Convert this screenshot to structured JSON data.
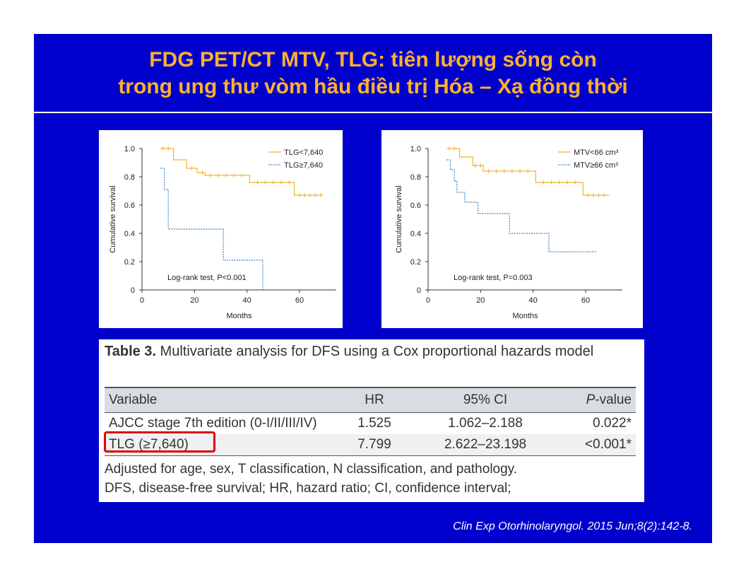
{
  "slide": {
    "title_line1": "FDG PET/CT MTV, TLG: tiên lượng sống còn",
    "title_line2": "trong ung thư vòm hầu điều trị Hóa – Xạ đồng thời",
    "background_color": "#0000cc",
    "title_color": "#ffb030",
    "citation": "Clin Exp Otorhinolaryngol. 2015 Jun;8(2):142-8."
  },
  "chart_data": [
    {
      "type": "line",
      "subtype": "kaplan-meier",
      "xlabel": "Months",
      "ylabel": "Cumulative survival",
      "xticks": [
        "0",
        "20",
        "40",
        "60"
      ],
      "yticks": [
        "0",
        "0.2",
        "0.4",
        "0.6",
        "0.8",
        "1.0"
      ],
      "xlim": [
        0,
        74
      ],
      "ylim": [
        0,
        1.0
      ],
      "annotation": "Log-rank test, P<0.001",
      "legend_position": "top-right",
      "series": [
        {
          "name": "TLG<7,640",
          "color": "#f0b429",
          "style": "solid",
          "steps": [
            [
              7,
              1.0
            ],
            [
              12,
              1.0
            ],
            [
              12,
              0.92
            ],
            [
              17,
              0.92
            ],
            [
              17,
              0.86
            ],
            [
              21,
              0.86
            ],
            [
              21,
              0.83
            ],
            [
              24,
              0.83
            ],
            [
              24,
              0.81
            ],
            [
              41,
              0.81
            ],
            [
              41,
              0.76
            ],
            [
              58,
              0.76
            ],
            [
              58,
              0.67
            ],
            [
              69,
              0.67
            ]
          ],
          "censor_x": [
            8,
            10,
            19,
            23,
            26,
            29,
            32,
            35,
            38,
            44,
            47,
            50,
            53,
            56,
            60,
            62,
            64,
            66,
            68
          ]
        },
        {
          "name": "TLG≥7,640",
          "color": "#3b82c4",
          "style": "dashed",
          "steps": [
            [
              7,
              0.86
            ],
            [
              8.5,
              0.86
            ],
            [
              8.5,
              0.71
            ],
            [
              10,
              0.71
            ],
            [
              10,
              0.43
            ],
            [
              31,
              0.43
            ],
            [
              31,
              0.21
            ],
            [
              46,
              0.21
            ],
            [
              46,
              0.0
            ]
          ],
          "censor_x": []
        }
      ]
    },
    {
      "type": "line",
      "subtype": "kaplan-meier",
      "xlabel": "Months",
      "ylabel": "Cumulative survival",
      "xticks": [
        "0",
        "20",
        "40",
        "60"
      ],
      "yticks": [
        "0",
        "0.2",
        "0.4",
        "0.6",
        "0.8",
        "1.0"
      ],
      "xlim": [
        0,
        74
      ],
      "ylim": [
        0,
        1.0
      ],
      "annotation": "Log-rank test, P=0.003",
      "legend_position": "top-right",
      "series": [
        {
          "name": "MTV<66 cm³",
          "color": "#f0b429",
          "style": "solid",
          "steps": [
            [
              7,
              1.0
            ],
            [
              12,
              1.0
            ],
            [
              12,
              0.94
            ],
            [
              17,
              0.94
            ],
            [
              17,
              0.88
            ],
            [
              21,
              0.88
            ],
            [
              21,
              0.84
            ],
            [
              41,
              0.84
            ],
            [
              41,
              0.76
            ],
            [
              59,
              0.76
            ],
            [
              59,
              0.67
            ],
            [
              69,
              0.67
            ]
          ],
          "censor_x": [
            8,
            10,
            18,
            20,
            23,
            26,
            29,
            32,
            35,
            38,
            44,
            47,
            50,
            53,
            56,
            61,
            63,
            65,
            67
          ]
        },
        {
          "name": "MTV≥66 cm³",
          "color": "#3b82c4",
          "style": "dashed",
          "steps": [
            [
              7,
              0.92
            ],
            [
              8.5,
              0.92
            ],
            [
              8.5,
              0.85
            ],
            [
              10,
              0.85
            ],
            [
              10,
              0.77
            ],
            [
              11,
              0.77
            ],
            [
              11,
              0.69
            ],
            [
              14,
              0.69
            ],
            [
              14,
              0.62
            ],
            [
              19,
              0.62
            ],
            [
              19,
              0.54
            ],
            [
              31,
              0.54
            ],
            [
              31,
              0.4
            ],
            [
              46,
              0.4
            ],
            [
              46,
              0.27
            ],
            [
              64,
              0.27
            ]
          ],
          "censor_x": []
        }
      ]
    }
  ],
  "table": {
    "caption_bold": "Table 3.",
    "caption_text": " Multivariate analysis for DFS using a Cox proportional hazards model",
    "headers": {
      "variable": "Variable",
      "hr": "HR",
      "ci": "95% CI",
      "p_prefix": "P",
      "p_suffix": "-value"
    },
    "rows": [
      {
        "variable": "AJCC stage 7th edition (0-I/II/III/IV)",
        "hr": "1.525",
        "ci": "1.062–2.188",
        "p": "0.022*"
      },
      {
        "variable": "TLG (≥7,640)",
        "hr": "7.799",
        "ci": "2.622–23.198",
        "p": "<0.001*"
      }
    ],
    "footnote_line1": "Adjusted for age, sex, T classification, N classification, and pathology.",
    "footnote_line2": "DFS, disease-free survival; HR, hazard ratio; CI, confidence interval;",
    "highlight_color": "#e00000"
  }
}
